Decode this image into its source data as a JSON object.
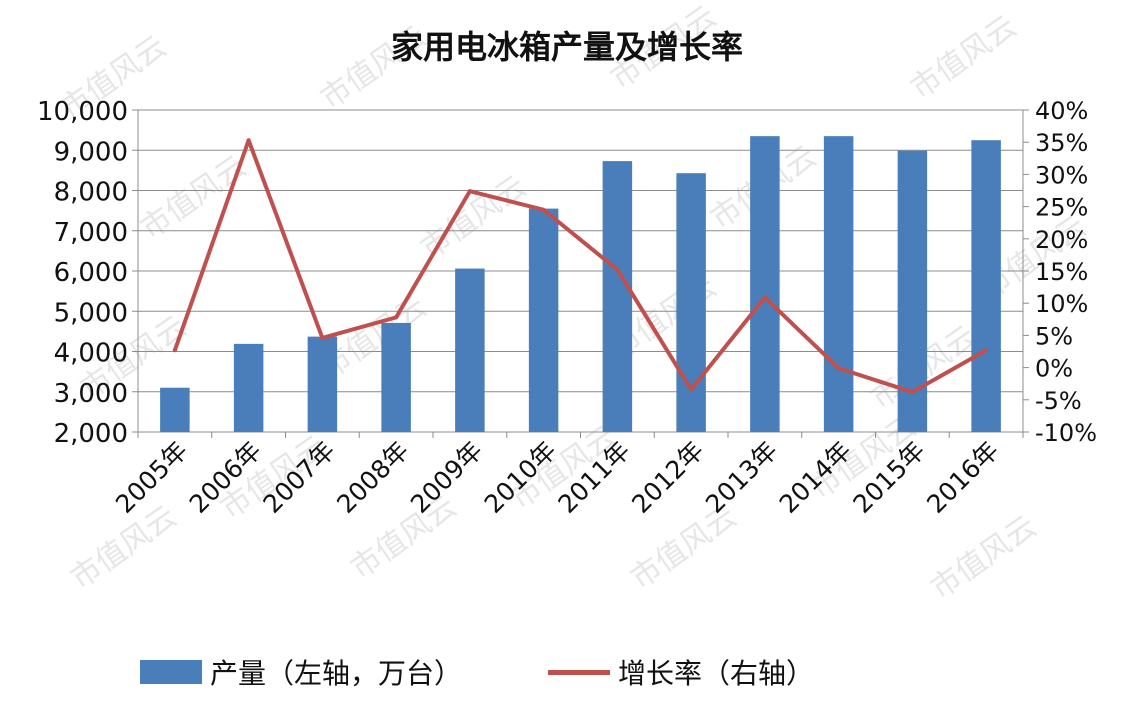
{
  "chart_data": {
    "type": "bar",
    "title": "家用电冰箱产量及增长率",
    "categories": [
      "2005年",
      "2006年",
      "2007年",
      "2008年",
      "2009年",
      "2010年",
      "2011年",
      "2012年",
      "2013年",
      "2014年",
      "2015年",
      "2016年"
    ],
    "series": [
      {
        "name": "产量（左轴，万台）",
        "type": "bar",
        "axis": "left",
        "color": "#4a7ebb",
        "values": [
          3100,
          4190,
          4370,
          4710,
          6060,
          7550,
          8730,
          8430,
          9350,
          9350,
          8990,
          9250
        ]
      },
      {
        "name": "增长率（右轴）",
        "type": "line",
        "axis": "right",
        "color": "#c0504d",
        "values": [
          2.7,
          35.3,
          4.6,
          7.8,
          27.4,
          24.5,
          15.2,
          -3.4,
          10.9,
          -0.1,
          -3.8,
          2.7
        ]
      }
    ],
    "y_left": {
      "min": 2000,
      "max": 10000,
      "ticks": [
        "10,000",
        "9,000",
        "8,000",
        "7,000",
        "6,000",
        "5,000",
        "4,000",
        "3,000",
        "2,000"
      ]
    },
    "y_right": {
      "min": -10,
      "max": 40,
      "ticks": [
        "40%",
        "35%",
        "30%",
        "25%",
        "20%",
        "15%",
        "10%",
        "5%",
        "0%",
        "-5%",
        "-10%"
      ]
    },
    "grid": true,
    "legend_position": "bottom"
  },
  "watermark": "市值风云"
}
